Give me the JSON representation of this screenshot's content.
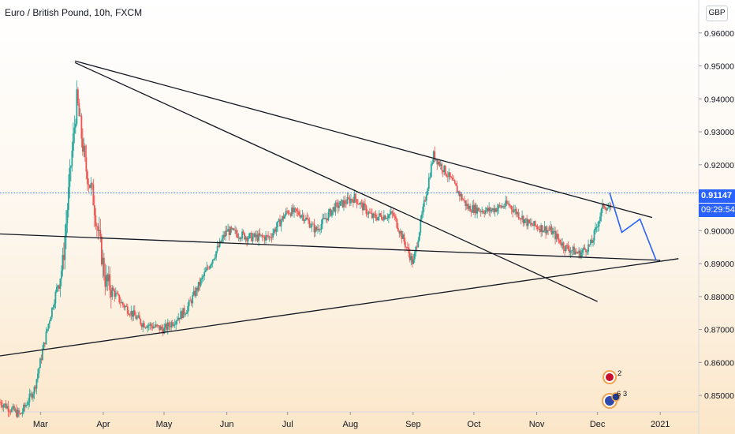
{
  "header": {
    "symbol_title": "Euro / British Pound, 10h, FXCM",
    "currency_badge": "GBP"
  },
  "price_scale": {
    "current_price_label": "0.91147",
    "countdown_label": "09:29:54",
    "current_price_color": "#2962ff"
  },
  "events": {
    "flag_badge_1": "2",
    "flag_badge_2": "6 3"
  },
  "chart_data": {
    "type": "candlestick",
    "title": "Euro / British Pound, 10h, FXCM",
    "ylim": [
      0.845,
      0.97
    ],
    "y_ticks": [
      0.85,
      0.86,
      0.87,
      0.88,
      0.89,
      0.9,
      0.91,
      0.92,
      0.93,
      0.94,
      0.95,
      0.96
    ],
    "y_tick_labels": [
      "0.85000",
      "0.86000",
      "0.87000",
      "0.88000",
      "0.89000",
      "0.90000",
      "0.91000",
      "0.92000",
      "0.93000",
      "0.94000",
      "0.95000",
      "0.96000"
    ],
    "x_range": [
      "2020-02-10",
      "2021-01-20"
    ],
    "x_ticks": [
      {
        "date": "2020-03-01",
        "label": "Mar"
      },
      {
        "date": "2020-04-01",
        "label": "Apr"
      },
      {
        "date": "2020-05-01",
        "label": "May"
      },
      {
        "date": "2020-06-01",
        "label": "Jun"
      },
      {
        "date": "2020-07-01",
        "label": "Jul"
      },
      {
        "date": "2020-08-01",
        "label": "Aug"
      },
      {
        "date": "2020-09-01",
        "label": "Sep"
      },
      {
        "date": "2020-10-01",
        "label": "Oct"
      },
      {
        "date": "2020-11-01",
        "label": "Nov"
      },
      {
        "date": "2020-12-01",
        "label": "Dec"
      },
      {
        "date": "2021-01-01",
        "label": "2021"
      }
    ],
    "up_color": "#26a69a",
    "down_color": "#ef5350",
    "current_price": 0.91147,
    "close_path": [
      {
        "date": "2020-02-10",
        "price": 0.848
      },
      {
        "date": "2020-02-20",
        "price": 0.844
      },
      {
        "date": "2020-02-27",
        "price": 0.852
      },
      {
        "date": "2020-03-05",
        "price": 0.872
      },
      {
        "date": "2020-03-12",
        "price": 0.89
      },
      {
        "date": "2020-03-16",
        "price": 0.92
      },
      {
        "date": "2020-03-19",
        "price": 0.94
      },
      {
        "date": "2020-03-23",
        "price": 0.92
      },
      {
        "date": "2020-03-27",
        "price": 0.91
      },
      {
        "date": "2020-04-02",
        "price": 0.885
      },
      {
        "date": "2020-04-10",
        "price": 0.878
      },
      {
        "date": "2020-04-20",
        "price": 0.872
      },
      {
        "date": "2020-05-01",
        "price": 0.87
      },
      {
        "date": "2020-05-12",
        "price": 0.876
      },
      {
        "date": "2020-05-22",
        "price": 0.888
      },
      {
        "date": "2020-06-01",
        "price": 0.9
      },
      {
        "date": "2020-06-12",
        "price": 0.898
      },
      {
        "date": "2020-06-22",
        "price": 0.898
      },
      {
        "date": "2020-07-01",
        "price": 0.906
      },
      {
        "date": "2020-07-08",
        "price": 0.905
      },
      {
        "date": "2020-07-15",
        "price": 0.9
      },
      {
        "date": "2020-07-24",
        "price": 0.907
      },
      {
        "date": "2020-08-03",
        "price": 0.91
      },
      {
        "date": "2020-08-12",
        "price": 0.904
      },
      {
        "date": "2020-08-22",
        "price": 0.905
      },
      {
        "date": "2020-09-01",
        "price": 0.89
      },
      {
        "date": "2020-09-07",
        "price": 0.91
      },
      {
        "date": "2020-09-11",
        "price": 0.923
      },
      {
        "date": "2020-09-18",
        "price": 0.917
      },
      {
        "date": "2020-09-28",
        "price": 0.907
      },
      {
        "date": "2020-10-08",
        "price": 0.906
      },
      {
        "date": "2020-10-18",
        "price": 0.908
      },
      {
        "date": "2020-10-28",
        "price": 0.902
      },
      {
        "date": "2020-11-08",
        "price": 0.9
      },
      {
        "date": "2020-11-15",
        "price": 0.895
      },
      {
        "date": "2020-11-22",
        "price": 0.893
      },
      {
        "date": "2020-11-28",
        "price": 0.896
      },
      {
        "date": "2020-12-04",
        "price": 0.908
      },
      {
        "date": "2020-12-08",
        "price": 0.906
      }
    ],
    "trendlines": [
      {
        "name": "upper-descending-trendline",
        "points": [
          {
            "date": "2020-03-18",
            "price": 0.9515
          },
          {
            "date": "2020-12-28",
            "price": 0.904
          }
        ]
      },
      {
        "name": "steep-descending-trendline",
        "points": [
          {
            "date": "2020-03-18",
            "price": 0.951
          },
          {
            "date": "2020-12-01",
            "price": 0.8785
          }
        ]
      },
      {
        "name": "horizontal-support-trendline",
        "points": [
          {
            "date": "2020-02-10",
            "price": 0.899
          },
          {
            "date": "2021-01-01",
            "price": 0.891
          }
        ]
      },
      {
        "name": "ascending-support-trendline",
        "points": [
          {
            "date": "2020-02-10",
            "price": 0.862
          },
          {
            "date": "2021-01-10",
            "price": 0.8915
          }
        ]
      }
    ],
    "projection": {
      "color": "#2962ff",
      "points": [
        {
          "date": "2020-12-07",
          "price": 0.9115
        },
        {
          "date": "2020-12-13",
          "price": 0.8995
        },
        {
          "date": "2020-12-22",
          "price": 0.9035
        },
        {
          "date": "2020-12-30",
          "price": 0.891
        }
      ]
    }
  }
}
